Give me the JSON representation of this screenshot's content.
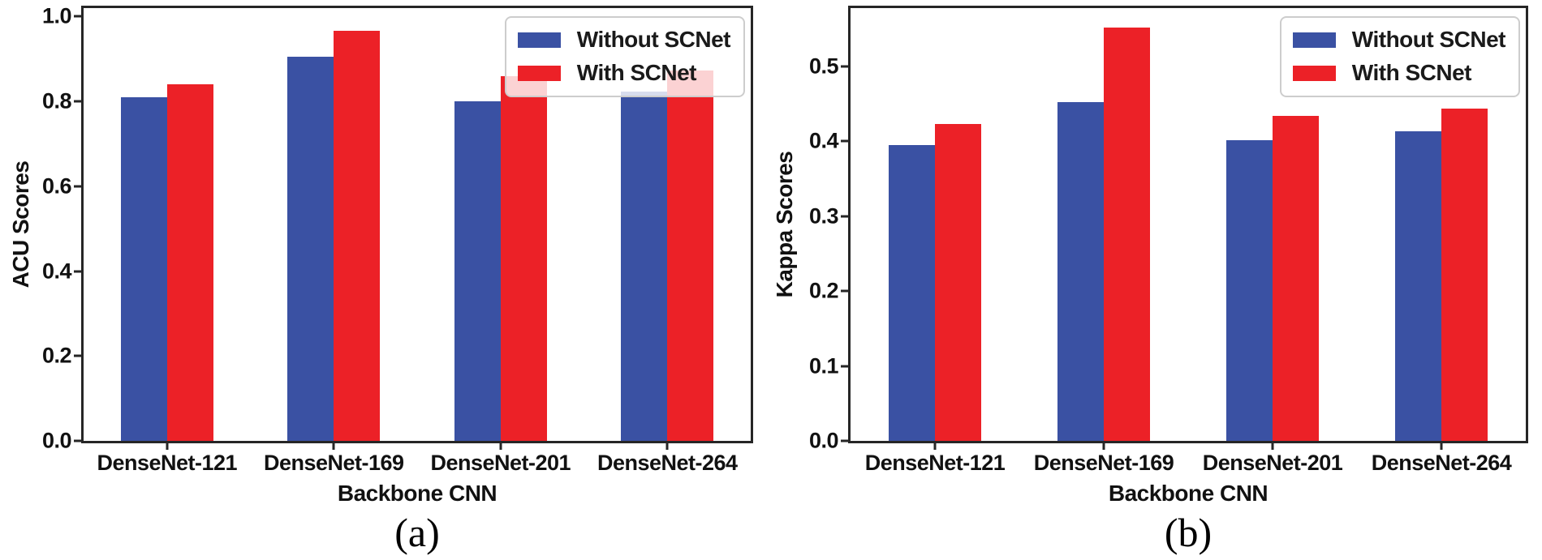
{
  "figure": {
    "background": "#ffffff",
    "axis_color": "#262626",
    "series_colors": {
      "without_scnet": "#3a51a3",
      "with_scnet": "#ec2127"
    }
  },
  "chart_data": [
    {
      "id": "a",
      "type": "bar",
      "caption": "(a)",
      "xlabel": "Backbone CNN",
      "ylabel": "ACU Scores",
      "categories": [
        "DenseNet-121",
        "DenseNet-169",
        "DenseNet-201",
        "DenseNet-264"
      ],
      "series": [
        {
          "name": "Without SCNet",
          "color": "#3a51a3",
          "values": [
            0.81,
            0.905,
            0.8,
            0.823
          ]
        },
        {
          "name": "With SCNet",
          "color": "#ec2127",
          "values": [
            0.84,
            0.967,
            0.86,
            0.872
          ]
        }
      ],
      "yticks": [
        0.0,
        0.2,
        0.4,
        0.6,
        0.8,
        1.0
      ],
      "ytick_labels": [
        "0.0",
        "0.2",
        "0.4",
        "0.6",
        "0.8",
        "1.0"
      ],
      "ylim": [
        0,
        1.02
      ],
      "grid": false,
      "legend": {
        "position": "top-right",
        "entries": [
          "Without SCNet",
          "With SCNet"
        ]
      }
    },
    {
      "id": "b",
      "type": "bar",
      "caption": "(b)",
      "xlabel": "Backbone CNN",
      "ylabel": "Kappa Scores",
      "categories": [
        "DenseNet-121",
        "DenseNet-169",
        "DenseNet-201",
        "DenseNet-264"
      ],
      "series": [
        {
          "name": "Without SCNet",
          "color": "#3a51a3",
          "values": [
            0.395,
            0.453,
            0.402,
            0.413
          ]
        },
        {
          "name": "With SCNet",
          "color": "#ec2127",
          "values": [
            0.423,
            0.552,
            0.434,
            0.444
          ]
        }
      ],
      "yticks": [
        0.0,
        0.1,
        0.2,
        0.3,
        0.4,
        0.5
      ],
      "ytick_labels": [
        "0.0",
        "0.1",
        "0.2",
        "0.3",
        "0.4",
        "0.5"
      ],
      "ylim": [
        0,
        0.578
      ],
      "grid": false,
      "legend": {
        "position": "top-right",
        "entries": [
          "Without SCNet",
          "With SCNet"
        ]
      }
    }
  ]
}
